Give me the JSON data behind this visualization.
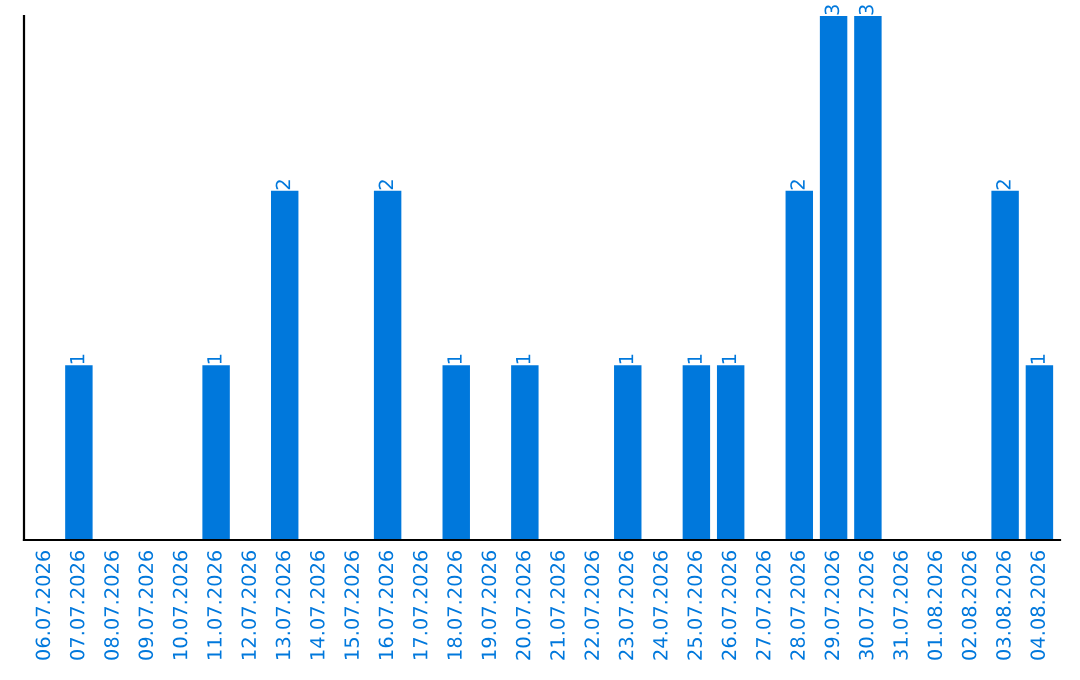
{
  "chart_data": {
    "type": "bar",
    "categories": [
      "06.07.2026",
      "07.07.2026",
      "08.07.2026",
      "09.07.2026",
      "10.07.2026",
      "11.07.2026",
      "12.07.2026",
      "13.07.2026",
      "14.07.2026",
      "15.07.2026",
      "16.07.2026",
      "17.07.2026",
      "18.07.2026",
      "19.07.2026",
      "20.07.2026",
      "21.07.2026",
      "22.07.2026",
      "23.07.2026",
      "24.07.2026",
      "25.07.2026",
      "26.07.2026",
      "27.07.2026",
      "28.07.2026",
      "29.07.2026",
      "30.07.2026",
      "31.07.2026",
      "01.08.2026",
      "02.08.2026",
      "03.08.2026",
      "04.08.2026"
    ],
    "values": [
      0,
      1,
      0,
      0,
      0,
      1,
      0,
      2,
      0,
      0,
      2,
      0,
      1,
      0,
      1,
      0,
      0,
      1,
      0,
      1,
      1,
      0,
      2,
      3,
      3,
      0,
      0,
      0,
      2,
      1
    ],
    "value_labels": [
      null,
      "1",
      null,
      null,
      null,
      "1",
      null,
      "2",
      null,
      null,
      "2",
      null,
      "1",
      null,
      "1",
      null,
      null,
      "1",
      null,
      "1",
      "1",
      null,
      "2",
      "3",
      "3",
      null,
      null,
      null,
      "2",
      "1"
    ],
    "color": "#0078dc",
    "ylim": [
      0,
      3
    ],
    "tick_labels": "x",
    "grid": false,
    "legend": false
  }
}
